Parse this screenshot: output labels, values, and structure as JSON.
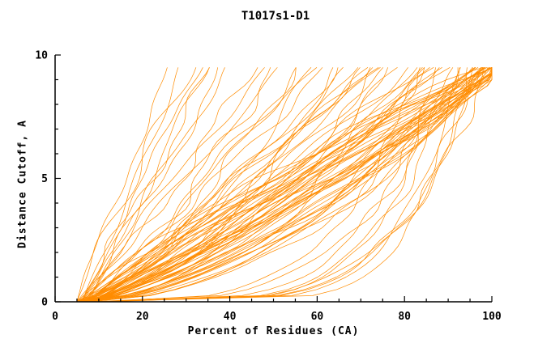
{
  "title": "T1017s1-D1",
  "chart_data": {
    "type": "line",
    "title": "T1017s1-D1",
    "xlabel": "Percent of Residues (CA)",
    "ylabel": "Distance Cutoff, A",
    "xlim": [
      0,
      100
    ],
    "ylim": [
      0,
      10
    ],
    "x_major_ticks": [
      0,
      20,
      40,
      60,
      80,
      100
    ],
    "y_major_ticks": [
      0,
      5,
      10
    ],
    "x_minor_step": 5,
    "y_minor_step": 1,
    "grid": false,
    "legend": "none",
    "line_color": "#ff8c00",
    "axis_color": "#000000",
    "background": "#ffffff",
    "y_max_sampled": 9.5,
    "curve_param_format": [
      "x_start_percent",
      "x_at_top_percent",
      "shape_exponent",
      "wiggle_amplitude",
      "seed"
    ],
    "curves": [
      [
        5,
        26,
        1.05,
        1.2,
        1
      ],
      [
        6,
        29,
        0.95,
        1.5,
        2
      ],
      [
        5,
        31,
        1.1,
        1.8,
        3
      ],
      [
        7,
        34,
        0.9,
        1.4,
        4
      ],
      [
        6,
        36,
        1.0,
        2.0,
        5
      ],
      [
        5,
        38,
        0.85,
        1.6,
        6
      ],
      [
        8,
        40,
        1.15,
        1.3,
        7
      ],
      [
        6,
        33,
        1.0,
        1.0,
        8
      ],
      [
        6,
        46,
        0.9,
        2.2,
        9
      ],
      [
        7,
        50,
        0.8,
        2.5,
        10
      ],
      [
        5,
        52,
        1.0,
        1.8,
        11
      ],
      [
        8,
        55,
        0.75,
        2.0,
        12
      ],
      [
        6,
        58,
        0.95,
        2.4,
        13
      ],
      [
        7,
        60,
        0.7,
        2.2,
        14
      ],
      [
        5,
        62,
        0.9,
        1.9,
        15
      ],
      [
        8,
        64,
        0.8,
        2.6,
        16
      ],
      [
        6,
        48,
        1.05,
        1.5,
        17
      ],
      [
        7,
        56,
        0.85,
        2.0,
        18
      ],
      [
        6,
        66,
        0.75,
        2.5,
        19
      ],
      [
        7,
        68,
        0.9,
        2.2,
        20
      ],
      [
        5,
        70,
        0.65,
        2.8,
        21
      ],
      [
        8,
        72,
        0.85,
        2.0,
        22
      ],
      [
        6,
        74,
        0.7,
        2.4,
        23
      ],
      [
        7,
        76,
        0.95,
        2.6,
        24
      ],
      [
        5,
        78,
        0.6,
        2.2,
        25
      ],
      [
        8,
        80,
        0.8,
        2.8,
        26
      ],
      [
        6,
        82,
        0.7,
        2.0,
        27
      ],
      [
        7,
        84,
        0.9,
        2.5,
        28
      ],
      [
        5,
        86,
        0.65,
        2.3,
        29
      ],
      [
        8,
        88,
        0.75,
        2.7,
        30
      ],
      [
        6,
        90,
        0.85,
        2.1,
        31
      ],
      [
        7,
        67,
        0.6,
        2.4,
        32
      ],
      [
        5,
        73,
        0.8,
        2.6,
        33
      ],
      [
        8,
        79,
        0.7,
        2.2,
        34
      ],
      [
        6,
        85,
        0.55,
        2.5,
        35
      ],
      [
        7,
        89,
        0.75,
        2.0,
        36
      ],
      [
        5,
        71,
        0.9,
        2.8,
        37
      ],
      [
        8,
        83,
        0.6,
        2.3,
        38
      ],
      [
        6,
        77,
        0.72,
        2.6,
        39
      ],
      [
        7,
        87,
        0.66,
        2.1,
        40
      ],
      [
        6,
        96,
        0.55,
        2.5,
        41
      ],
      [
        7,
        98,
        0.7,
        2.2,
        42
      ],
      [
        5,
        100,
        0.85,
        2.8,
        43
      ],
      [
        8,
        102,
        0.6,
        2.0,
        44
      ],
      [
        6,
        97,
        0.95,
        2.4,
        45
      ],
      [
        7,
        99,
        0.5,
        2.6,
        46
      ],
      [
        5,
        101,
        0.75,
        2.2,
        47
      ],
      [
        8,
        103,
        0.9,
        2.8,
        48
      ],
      [
        6,
        98,
        1.1,
        2.0,
        49
      ],
      [
        7,
        100,
        0.65,
        2.5,
        50
      ],
      [
        5,
        102,
        0.8,
        2.3,
        51
      ],
      [
        8,
        96,
        1.2,
        2.7,
        52
      ],
      [
        6,
        99,
        0.58,
        2.1,
        53
      ],
      [
        7,
        101,
        0.72,
        2.6,
        54
      ],
      [
        5,
        103,
        0.88,
        2.2,
        55
      ],
      [
        8,
        97,
        1.0,
        2.8,
        56
      ],
      [
        6,
        100,
        0.62,
        2.4,
        57
      ],
      [
        7,
        102,
        0.78,
        2.0,
        58
      ],
      [
        5,
        98,
        1.15,
        2.5,
        59
      ],
      [
        8,
        100,
        0.52,
        2.3,
        60
      ],
      [
        6,
        101,
        0.68,
        2.6,
        61
      ],
      [
        7,
        103,
        0.82,
        2.1,
        62
      ],
      [
        5,
        97,
        0.92,
        2.7,
        63
      ],
      [
        8,
        99,
        0.56,
        2.2,
        64
      ],
      [
        6,
        102,
        0.74,
        2.5,
        65
      ],
      [
        7,
        98,
        1.05,
        2.3,
        66
      ],
      [
        5,
        100,
        0.6,
        2.8,
        67
      ],
      [
        8,
        101,
        0.86,
        2.0,
        68
      ],
      [
        6,
        103,
        0.64,
        2.4,
        69
      ],
      [
        7,
        97,
        1.25,
        2.6,
        70
      ],
      [
        5,
        99,
        0.7,
        2.2,
        71
      ],
      [
        8,
        102,
        0.54,
        2.5,
        72
      ],
      [
        6,
        98,
        0.9,
        2.7,
        73
      ],
      [
        7,
        100,
        0.76,
        2.1,
        74
      ],
      [
        5,
        101,
        1.0,
        2.3,
        75
      ],
      [
        8,
        103,
        0.66,
        2.6,
        76
      ],
      [
        6,
        97,
        0.8,
        2.2,
        77
      ],
      [
        7,
        99,
        1.12,
        2.8,
        78
      ],
      [
        5,
        102,
        0.58,
        2.0,
        79
      ],
      [
        8,
        100,
        0.95,
        2.4,
        80
      ],
      [
        8,
        88,
        0.18,
        1.5,
        81
      ],
      [
        10,
        92,
        0.22,
        1.8,
        82
      ],
      [
        9,
        95,
        0.15,
        1.2,
        83
      ],
      [
        11,
        90,
        0.25,
        2.0,
        84
      ],
      [
        8,
        97,
        0.2,
        1.6,
        85
      ],
      [
        10,
        85,
        0.3,
        1.9,
        86
      ],
      [
        9,
        93,
        0.17,
        1.4,
        87
      ],
      [
        12,
        99,
        0.24,
        1.7,
        88
      ],
      [
        8,
        91,
        0.28,
        2.1,
        89
      ],
      [
        10,
        96,
        0.2,
        1.5,
        90
      ]
    ]
  }
}
